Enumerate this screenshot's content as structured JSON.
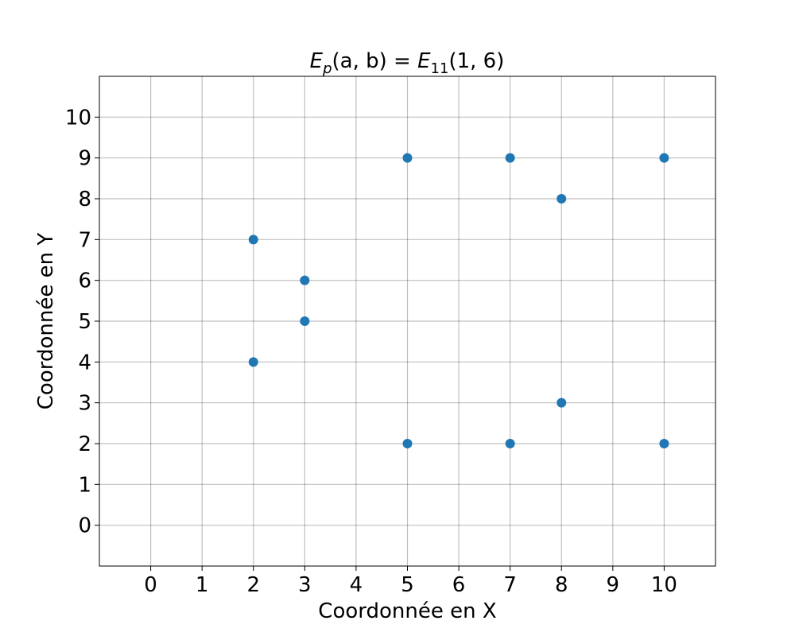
{
  "chart_data": {
    "type": "scatter",
    "title": {
      "main": "E",
      "main_sub": "p",
      "args": "(a, b) = ",
      "curve": "E",
      "curve_sub": "11",
      "curve_args": "(1, 6)"
    },
    "xlabel": "Coordonnée en X",
    "ylabel": "Coordonnée en Y",
    "xlim": [
      -1,
      11
    ],
    "ylim": [
      -1,
      11
    ],
    "xticks": [
      0,
      1,
      2,
      3,
      4,
      5,
      6,
      7,
      8,
      9,
      10
    ],
    "yticks": [
      0,
      1,
      2,
      3,
      4,
      5,
      6,
      7,
      8,
      9,
      10
    ],
    "grid": true,
    "marker_color": "#1f77b4",
    "points": [
      {
        "x": 2,
        "y": 4
      },
      {
        "x": 2,
        "y": 7
      },
      {
        "x": 3,
        "y": 5
      },
      {
        "x": 3,
        "y": 6
      },
      {
        "x": 5,
        "y": 2
      },
      {
        "x": 5,
        "y": 9
      },
      {
        "x": 7,
        "y": 2
      },
      {
        "x": 7,
        "y": 9
      },
      {
        "x": 8,
        "y": 3
      },
      {
        "x": 8,
        "y": 8
      },
      {
        "x": 10,
        "y": 2
      },
      {
        "x": 10,
        "y": 9
      }
    ]
  }
}
